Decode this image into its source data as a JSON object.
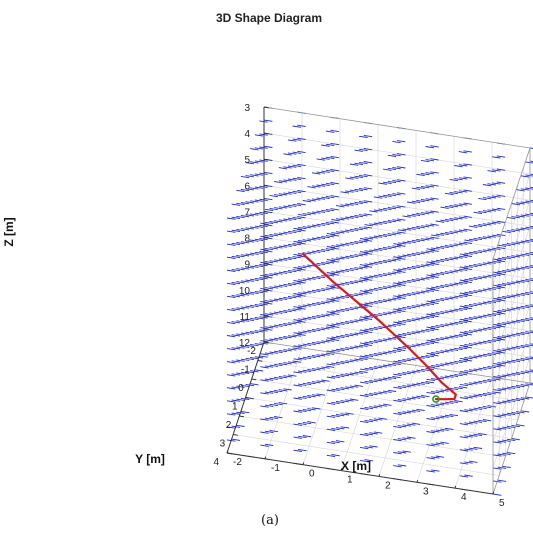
{
  "chart_data": {
    "type": "line",
    "title": "3D Shape Diagram",
    "panel_label": "(a)",
    "xlabel": "X [m]",
    "ylabel": "Y [m]",
    "zlabel": "Z [m]",
    "xlim": [
      -2,
      5
    ],
    "ylim": [
      -2,
      4
    ],
    "zlim": [
      3,
      12
    ],
    "z_reversed": true,
    "x_ticks": [
      "-2",
      "-1",
      "0",
      "1",
      "2",
      "3",
      "4",
      "5"
    ],
    "y_ticks": [
      "-2",
      "-1",
      "0",
      "1",
      "2",
      "3",
      "4"
    ],
    "z_ticks": [
      "3",
      "4",
      "5",
      "6",
      "7",
      "8",
      "9",
      "10",
      "11",
      "12"
    ],
    "grid": true,
    "colors": {
      "field": "#1f2bd6",
      "trajectory": "#e01818",
      "endpoint": "#2a9a2a",
      "axes": "#222222"
    },
    "series": [
      {
        "values": [
          [
            -0.4,
            1.55,
            5.75
          ],
          [
            0.0,
            1.55,
            6.2
          ],
          [
            0.4,
            1.55,
            6.65
          ],
          [
            0.8,
            1.55,
            7.05
          ],
          [
            1.2,
            1.55,
            7.45
          ],
          [
            1.6,
            1.55,
            7.85
          ],
          [
            2.0,
            1.55,
            8.3
          ],
          [
            2.4,
            1.55,
            8.75
          ],
          [
            2.85,
            1.55,
            9.3
          ],
          [
            3.25,
            1.5,
            9.9
          ],
          [
            3.6,
            1.4,
            10.35
          ],
          [
            3.55,
            1.3,
            10.6
          ],
          [
            3.3,
            1.25,
            10.7
          ],
          [
            3.05,
            1.25,
            10.75
          ]
        ]
      }
    ]
  }
}
